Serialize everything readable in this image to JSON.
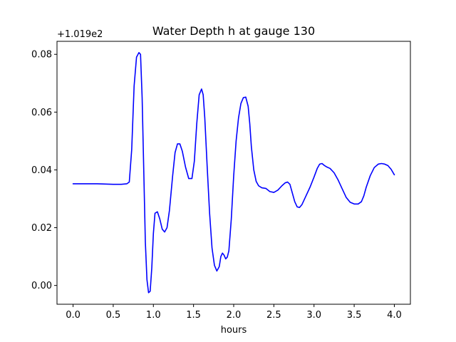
{
  "chart_data": {
    "type": "line",
    "title": "Water Depth h at gauge 130",
    "xlabel": "hours",
    "ylabel": "",
    "offset_label": "+1.019e2",
    "xlim": [
      -0.2,
      4.2
    ],
    "ylim": [
      -0.0065,
      0.0845
    ],
    "grid": false,
    "xticks": [
      {
        "value": 0.0,
        "label": "0.0"
      },
      {
        "value": 0.5,
        "label": "0.5"
      },
      {
        "value": 1.0,
        "label": "1.0"
      },
      {
        "value": 1.5,
        "label": "1.5"
      },
      {
        "value": 2.0,
        "label": "2.0"
      },
      {
        "value": 2.5,
        "label": "2.5"
      },
      {
        "value": 3.0,
        "label": "3.0"
      },
      {
        "value": 3.5,
        "label": "3.5"
      },
      {
        "value": 4.0,
        "label": "4.0"
      }
    ],
    "yticks": [
      {
        "value": 0.0,
        "label": "0.00"
      },
      {
        "value": 0.02,
        "label": "0.02"
      },
      {
        "value": 0.04,
        "label": "0.04"
      },
      {
        "value": 0.06,
        "label": "0.06"
      },
      {
        "value": 0.08,
        "label": "0.08"
      }
    ],
    "series": [
      {
        "color": "#0000ff",
        "x": [
          0.0,
          0.3,
          0.5,
          0.6,
          0.67,
          0.7,
          0.73,
          0.76,
          0.79,
          0.82,
          0.84,
          0.86,
          0.88,
          0.9,
          0.92,
          0.94,
          0.96,
          0.98,
          1.0,
          1.02,
          1.05,
          1.08,
          1.11,
          1.14,
          1.17,
          1.2,
          1.24,
          1.27,
          1.3,
          1.33,
          1.36,
          1.4,
          1.44,
          1.48,
          1.51,
          1.54,
          1.57,
          1.6,
          1.62,
          1.64,
          1.67,
          1.7,
          1.73,
          1.76,
          1.79,
          1.82,
          1.84,
          1.86,
          1.88,
          1.9,
          1.92,
          1.94,
          1.97,
          2.0,
          2.03,
          2.06,
          2.09,
          2.12,
          2.15,
          2.18,
          2.2,
          2.22,
          2.25,
          2.28,
          2.31,
          2.35,
          2.4,
          2.45,
          2.5,
          2.55,
          2.6,
          2.64,
          2.67,
          2.7,
          2.73,
          2.76,
          2.79,
          2.82,
          2.85,
          2.9,
          2.95,
          3.0,
          3.04,
          3.07,
          3.1,
          3.13,
          3.16,
          3.2,
          3.25,
          3.3,
          3.35,
          3.4,
          3.45,
          3.5,
          3.55,
          3.59,
          3.62,
          3.65,
          3.7,
          3.75,
          3.8,
          3.84,
          3.88,
          3.92,
          3.96,
          4.0
        ],
        "y": [
          0.0352,
          0.0352,
          0.035,
          0.035,
          0.0352,
          0.0358,
          0.047,
          0.069,
          0.079,
          0.0806,
          0.08,
          0.065,
          0.04,
          0.015,
          0.002,
          -0.0025,
          -0.002,
          0.006,
          0.018,
          0.025,
          0.0255,
          0.023,
          0.0195,
          0.0185,
          0.02,
          0.026,
          0.038,
          0.046,
          0.049,
          0.049,
          0.0465,
          0.041,
          0.037,
          0.037,
          0.043,
          0.056,
          0.066,
          0.068,
          0.066,
          0.058,
          0.041,
          0.025,
          0.013,
          0.007,
          0.005,
          0.0065,
          0.01,
          0.0112,
          0.0105,
          0.0092,
          0.0098,
          0.012,
          0.023,
          0.038,
          0.05,
          0.058,
          0.063,
          0.065,
          0.0652,
          0.062,
          0.056,
          0.048,
          0.04,
          0.036,
          0.0345,
          0.0338,
          0.0336,
          0.0325,
          0.0322,
          0.033,
          0.0345,
          0.0355,
          0.0358,
          0.035,
          0.032,
          0.029,
          0.0272,
          0.027,
          0.028,
          0.031,
          0.034,
          0.0375,
          0.0405,
          0.042,
          0.0422,
          0.0415,
          0.041,
          0.0405,
          0.039,
          0.0365,
          0.0335,
          0.0305,
          0.0288,
          0.0282,
          0.0282,
          0.029,
          0.031,
          0.034,
          0.038,
          0.0408,
          0.042,
          0.0422,
          0.042,
          0.0415,
          0.0402,
          0.0383
        ]
      }
    ]
  }
}
